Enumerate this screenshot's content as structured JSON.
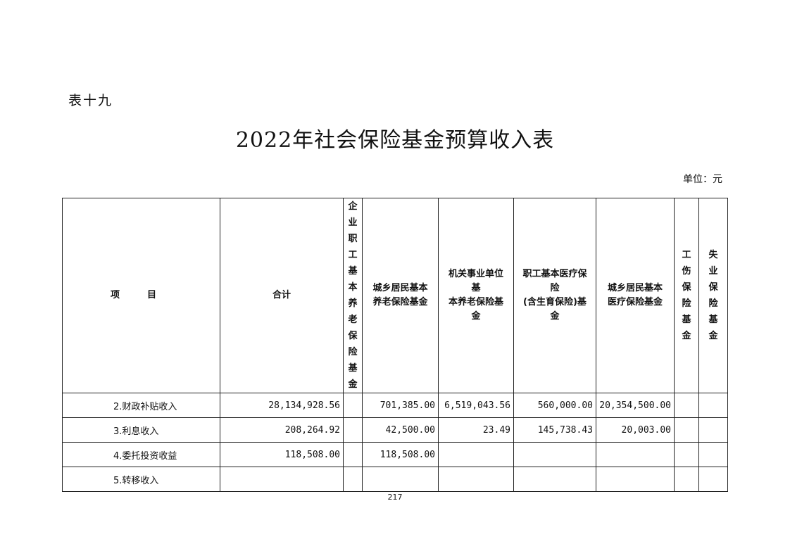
{
  "table_label": "表十九",
  "title": "2022年社会保险基金预算收入表",
  "unit": "单位：元",
  "headers": [
    {
      "text": "项　　　目",
      "vertical": false
    },
    {
      "text": "合计",
      "vertical": false
    },
    {
      "text": "企\n业\n职\n工\n基\n本\n养\n老\n保\n险\n基\n金",
      "vertical": true
    },
    {
      "text": "城乡居民基本\n养老保险基金",
      "vertical": false
    },
    {
      "text": "机关事业单位\n基\n本养老保险基\n金",
      "vertical": false
    },
    {
      "text": "职工基本医疗保\n险\n(含生育保险)基\n金",
      "vertical": false
    },
    {
      "text": "城乡居民基本\n医疗保险基金",
      "vertical": false
    },
    {
      "text": "工\n伤\n保\n险\n基\n金",
      "vertical": true
    },
    {
      "text": "失\n业\n保\n险\n基\n金",
      "vertical": true
    }
  ],
  "rows": [
    [
      "2.财政补贴收入",
      "28,134,928.56",
      "",
      "701,385.00",
      "6,519,043.56",
      "560,000.00",
      "20,354,500.00",
      "",
      ""
    ],
    [
      "3.利息收入",
      "208,264.92",
      "",
      "42,500.00",
      "23.49",
      "145,738.43",
      "20,003.00",
      "",
      ""
    ],
    [
      "4.委托投资收益",
      "118,508.00",
      "",
      "118,508.00",
      "",
      "",
      "",
      "",
      ""
    ],
    [
      "5.转移收入",
      "",
      "",
      "",
      "",
      "",
      "",
      "",
      ""
    ]
  ],
  "page_number": "217"
}
